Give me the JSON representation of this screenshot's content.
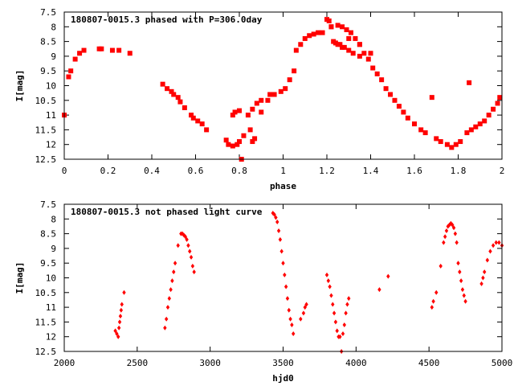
{
  "chart_data": [
    {
      "type": "scatter",
      "title": "180807-0015.3 phased with P=306.0day",
      "xlabel": "phase",
      "ylabel": "I[mag]",
      "xlim": [
        0,
        2
      ],
      "ylim": [
        7.5,
        12.5
      ],
      "y_inverted": true,
      "grid": false,
      "xticks": [
        0,
        0.2,
        0.4,
        0.6,
        0.8,
        1,
        1.2,
        1.4,
        1.6,
        1.8,
        2
      ],
      "xtick_labels": [
        "0",
        "0.2",
        "0.4",
        "0.6",
        "0.8",
        "1",
        "1.2",
        "1.4",
        "1.6",
        "1.8",
        "2"
      ],
      "yticks": [
        7.5,
        8,
        8.5,
        9,
        9.5,
        10,
        10.5,
        11,
        11.5,
        12,
        12.5
      ],
      "ytick_labels": [
        "7.5",
        "8",
        "8.5",
        "9",
        "9.5",
        "10",
        "10.5",
        "11",
        "11.5",
        "12",
        "12.5"
      ],
      "color": "#ff0000",
      "marker": "square",
      "x": [
        0.0,
        0.02,
        0.03,
        0.05,
        0.07,
        0.09,
        0.16,
        0.17,
        0.22,
        0.25,
        0.3,
        0.45,
        0.47,
        0.49,
        0.5,
        0.52,
        0.53,
        0.55,
        0.58,
        0.59,
        0.61,
        0.63,
        0.65,
        0.74,
        0.75,
        0.77,
        0.79,
        0.8,
        0.81,
        0.77,
        0.78,
        0.8,
        0.82,
        0.85,
        0.86,
        0.87,
        0.84,
        0.86,
        0.88,
        0.9,
        0.9,
        0.93,
        0.94,
        0.96,
        0.99,
        1.01,
        1.03,
        1.05,
        1.06,
        1.08,
        1.1,
        1.12,
        1.14,
        1.16,
        1.18,
        1.2,
        1.21,
        1.22,
        1.23,
        1.24,
        1.25,
        1.26,
        1.27,
        1.28,
        1.3,
        1.32,
        1.35,
        1.22,
        1.25,
        1.27,
        1.29,
        1.31,
        1.33,
        1.35,
        1.37,
        1.39,
        1.41,
        1.43,
        1.45,
        1.47,
        1.49,
        1.51,
        1.53,
        1.55,
        1.57,
        1.6,
        1.63,
        1.65,
        1.7,
        1.72,
        1.75,
        1.77,
        1.79,
        1.81,
        1.84,
        1.86,
        1.88,
        1.9,
        1.92,
        1.94,
        1.96,
        1.98,
        1.99,
        1.68,
        1.85,
        1.3,
        1.35,
        1.4
      ],
      "y": [
        11.0,
        9.7,
        9.5,
        9.1,
        8.9,
        8.8,
        8.75,
        8.75,
        8.8,
        8.8,
        8.9,
        9.95,
        10.1,
        10.2,
        10.3,
        10.4,
        10.55,
        10.75,
        11.0,
        11.1,
        11.2,
        11.3,
        11.5,
        11.85,
        12.0,
        12.05,
        12.0,
        11.9,
        12.5,
        11.0,
        10.9,
        10.85,
        11.7,
        11.5,
        11.9,
        11.8,
        11.0,
        10.8,
        10.6,
        10.5,
        10.9,
        10.5,
        10.3,
        10.3,
        10.2,
        10.1,
        9.8,
        9.5,
        8.8,
        8.6,
        8.4,
        8.3,
        8.25,
        8.2,
        8.2,
        7.75,
        7.8,
        8.0,
        8.5,
        8.55,
        8.6,
        8.6,
        8.7,
        8.7,
        8.8,
        8.9,
        9.0,
        8.0,
        7.95,
        8.0,
        8.1,
        8.2,
        8.4,
        8.6,
        8.9,
        9.1,
        9.4,
        9.6,
        9.8,
        10.1,
        10.3,
        10.5,
        10.7,
        10.9,
        11.1,
        11.3,
        11.5,
        11.6,
        11.8,
        11.9,
        12.0,
        12.1,
        12.0,
        11.9,
        11.6,
        11.5,
        11.4,
        11.3,
        11.2,
        11.0,
        10.8,
        10.6,
        10.4,
        10.4,
        9.9,
        8.4,
        8.6,
        8.9
      ]
    },
    {
      "type": "scatter",
      "title": "180807-0015.3 not phased light curve",
      "xlabel": "hjd0",
      "ylabel": "I[mag]",
      "xlim": [
        2000,
        5000
      ],
      "ylim": [
        7.5,
        12.5
      ],
      "y_inverted": true,
      "grid": false,
      "xticks": [
        2000,
        2500,
        3000,
        3500,
        4000,
        4500,
        5000
      ],
      "xtick_labels": [
        "2000",
        "2500",
        "3000",
        "3500",
        "4000",
        "4500",
        "5000"
      ],
      "yticks": [
        7.5,
        8,
        8.5,
        9,
        9.5,
        10,
        10.5,
        11,
        11.5,
        12,
        12.5
      ],
      "ytick_labels": [
        "7.5",
        "8",
        "8.5",
        "9",
        "9.5",
        "10",
        "10.5",
        "11",
        "11.5",
        "12",
        "12.5"
      ],
      "color": "#ff0000",
      "marker": "diamond",
      "x": [
        2350,
        2360,
        2370,
        2375,
        2380,
        2385,
        2390,
        2395,
        2410,
        2690,
        2700,
        2710,
        2720,
        2730,
        2740,
        2750,
        2760,
        2780,
        2800,
        2810,
        2820,
        2830,
        2840,
        2850,
        2860,
        2870,
        2880,
        2890,
        3430,
        3440,
        3450,
        3460,
        3470,
        3480,
        3490,
        3500,
        3510,
        3520,
        3530,
        3540,
        3550,
        3560,
        3570,
        3620,
        3640,
        3650,
        3660,
        3800,
        3810,
        3820,
        3830,
        3840,
        3850,
        3860,
        3870,
        3880,
        3890,
        3900,
        3910,
        3920,
        3930,
        3940,
        3950,
        4160,
        4220,
        4520,
        4530,
        4550,
        4580,
        4600,
        4610,
        4620,
        4630,
        4640,
        4650,
        4660,
        4670,
        4680,
        4690,
        4700,
        4710,
        4720,
        4730,
        4740,
        4750,
        4860,
        4870,
        4880,
        4900,
        4920,
        4940,
        4960,
        4980,
        5000
      ],
      "y": [
        11.8,
        11.9,
        12.0,
        11.7,
        11.5,
        11.3,
        11.1,
        10.9,
        10.5,
        11.7,
        11.4,
        11.0,
        10.7,
        10.4,
        10.1,
        9.8,
        9.5,
        8.9,
        8.5,
        8.5,
        8.55,
        8.6,
        8.7,
        8.9,
        9.1,
        9.3,
        9.6,
        9.8,
        7.8,
        7.85,
        7.95,
        8.1,
        8.4,
        8.7,
        9.1,
        9.5,
        9.9,
        10.3,
        10.7,
        11.1,
        11.4,
        11.6,
        11.9,
        11.4,
        11.2,
        11.0,
        10.9,
        9.9,
        10.1,
        10.3,
        10.6,
        10.9,
        11.2,
        11.5,
        11.8,
        12.0,
        12.0,
        12.5,
        11.9,
        11.6,
        11.2,
        10.9,
        10.7,
        10.4,
        9.95,
        11.0,
        10.8,
        10.5,
        9.6,
        8.8,
        8.6,
        8.4,
        8.25,
        8.2,
        8.15,
        8.2,
        8.3,
        8.5,
        8.8,
        9.5,
        9.8,
        10.1,
        10.4,
        10.6,
        10.8,
        10.2,
        10.0,
        9.8,
        9.4,
        9.1,
        8.9,
        8.8,
        8.8,
        8.9
      ]
    }
  ]
}
